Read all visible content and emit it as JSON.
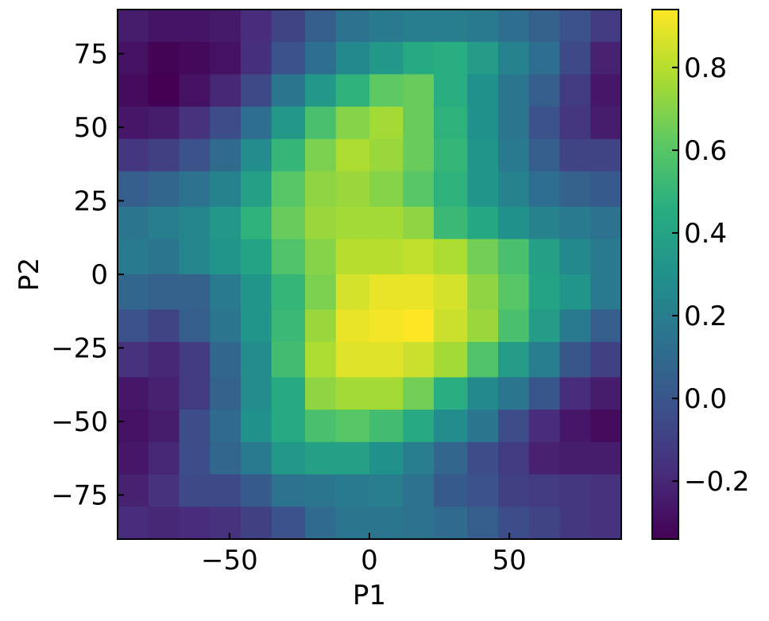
{
  "chart_data": {
    "type": "heatmap",
    "title": "",
    "xlabel": "P1",
    "ylabel": "P2",
    "xlim": [
      -90,
      90
    ],
    "ylim": [
      -90,
      90
    ],
    "xticks": [
      -50,
      0,
      50
    ],
    "xtick_labels": [
      "−50",
      "0",
      "50"
    ],
    "yticks": [
      75,
      50,
      25,
      0,
      -25,
      -50,
      -75
    ],
    "ytick_labels": [
      "75",
      "50",
      "25",
      "0",
      "−25",
      "−50",
      "−75"
    ],
    "x_edges": [
      -90,
      -79,
      -68,
      -57,
      -46,
      -35,
      -23,
      -12,
      0,
      12,
      23,
      35,
      46,
      57,
      68,
      79,
      90
    ],
    "y_edges": [
      90,
      79,
      68,
      57,
      46,
      35,
      23,
      12,
      0,
      -12,
      -23,
      -35,
      -46,
      -57,
      -68,
      -79,
      -90
    ],
    "values": [
      [
        -0.24,
        -0.27,
        -0.27,
        -0.25,
        -0.18,
        -0.08,
        0.04,
        0.14,
        0.18,
        0.2,
        0.2,
        0.18,
        0.12,
        0.06,
        -0.02,
        -0.12
      ],
      [
        -0.28,
        -0.33,
        -0.31,
        -0.28,
        -0.17,
        -0.02,
        0.12,
        0.26,
        0.34,
        0.44,
        0.46,
        0.36,
        0.22,
        0.12,
        -0.06,
        -0.22
      ],
      [
        -0.3,
        -0.34,
        -0.28,
        -0.2,
        -0.06,
        0.16,
        0.34,
        0.48,
        0.62,
        0.64,
        0.46,
        0.3,
        0.16,
        0.04,
        -0.12,
        -0.26
      ],
      [
        -0.26,
        -0.24,
        -0.16,
        -0.04,
        0.12,
        0.34,
        0.56,
        0.7,
        0.76,
        0.64,
        0.48,
        0.3,
        0.16,
        -0.02,
        -0.14,
        -0.24
      ],
      [
        -0.14,
        -0.1,
        -0.02,
        0.1,
        0.28,
        0.5,
        0.68,
        0.78,
        0.74,
        0.64,
        0.5,
        0.32,
        0.18,
        0.04,
        -0.08,
        -0.08
      ],
      [
        0.04,
        0.08,
        0.14,
        0.22,
        0.38,
        0.6,
        0.72,
        0.74,
        0.7,
        0.6,
        0.48,
        0.32,
        0.22,
        0.12,
        0.06,
        0.02
      ],
      [
        0.16,
        0.2,
        0.24,
        0.34,
        0.48,
        0.64,
        0.74,
        0.76,
        0.76,
        0.72,
        0.52,
        0.42,
        0.3,
        0.22,
        0.18,
        0.14
      ],
      [
        0.18,
        0.16,
        0.24,
        0.32,
        0.4,
        0.58,
        0.7,
        0.8,
        0.8,
        0.82,
        0.78,
        0.66,
        0.56,
        0.38,
        0.26,
        0.18
      ],
      [
        0.08,
        0.06,
        0.06,
        0.18,
        0.32,
        0.5,
        0.68,
        0.86,
        0.9,
        0.9,
        0.86,
        0.72,
        0.6,
        0.4,
        0.32,
        0.18
      ],
      [
        -0.02,
        -0.08,
        0.04,
        0.16,
        0.32,
        0.52,
        0.74,
        0.9,
        0.92,
        0.94,
        0.84,
        0.74,
        0.56,
        0.36,
        0.18,
        0.04
      ],
      [
        -0.16,
        -0.2,
        -0.12,
        0.08,
        0.28,
        0.54,
        0.78,
        0.88,
        0.88,
        0.84,
        0.76,
        0.58,
        0.36,
        0.2,
        0.0,
        -0.1
      ],
      [
        -0.26,
        -0.22,
        -0.12,
        0.06,
        0.28,
        0.44,
        0.72,
        0.76,
        0.76,
        0.66,
        0.46,
        0.26,
        0.16,
        0.0,
        -0.18,
        -0.24
      ],
      [
        -0.28,
        -0.24,
        -0.04,
        0.1,
        0.3,
        0.44,
        0.56,
        0.6,
        0.54,
        0.44,
        0.28,
        0.16,
        -0.04,
        -0.18,
        -0.26,
        -0.3
      ],
      [
        -0.26,
        -0.2,
        -0.04,
        0.08,
        0.18,
        0.34,
        0.38,
        0.38,
        0.3,
        0.2,
        0.08,
        -0.04,
        -0.12,
        -0.22,
        -0.24,
        -0.24
      ],
      [
        -0.22,
        -0.16,
        -0.06,
        -0.06,
        0.02,
        0.14,
        0.16,
        0.18,
        0.2,
        0.14,
        0.02,
        -0.02,
        -0.1,
        -0.12,
        -0.14,
        -0.16
      ],
      [
        -0.18,
        -0.2,
        -0.18,
        -0.16,
        -0.1,
        -0.02,
        0.1,
        0.16,
        0.16,
        0.14,
        0.1,
        0.04,
        -0.04,
        -0.08,
        -0.14,
        -0.16
      ]
    ],
    "colormap": "viridis",
    "vmin": -0.34,
    "vmax": 0.94,
    "colorbar_ticks": [
      0.8,
      0.6,
      0.4,
      0.2,
      0.0,
      -0.2
    ],
    "colorbar_tick_labels": [
      "0.8",
      "0.6",
      "0.4",
      "0.2",
      "0.0",
      "−0.2"
    ],
    "grid": false,
    "legend": "none"
  }
}
